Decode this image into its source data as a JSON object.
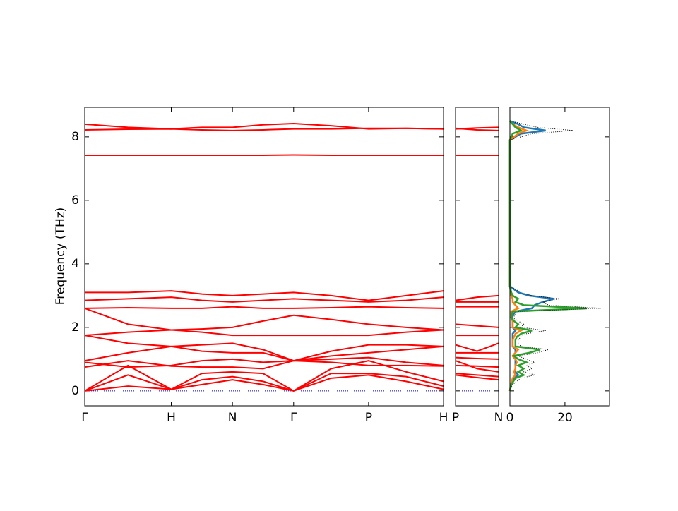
{
  "chart_data": [
    {
      "type": "line",
      "ylabel": "Frequency (THz)",
      "x": [
        0,
        0.5,
        1,
        1.354,
        1.707,
        2.06,
        2.414,
        2.847,
        3.28,
        3.713,
        4.146
      ],
      "xlim": [
        0,
        4.146
      ],
      "xticks": [
        {
          "value": 0,
          "label": "Γ"
        },
        {
          "value": 1,
          "label": "H"
        },
        {
          "value": 1.707,
          "label": "N"
        },
        {
          "value": 2.414,
          "label": "Γ"
        },
        {
          "value": 3.28,
          "label": "P"
        },
        {
          "value": 4.146,
          "label": "H"
        }
      ],
      "ylim": [
        -0.47,
        8.93
      ],
      "yticks": [
        0,
        2,
        4,
        6,
        8
      ],
      "zero_line_color": "#0000cc",
      "series": [
        {
          "color": "#ff0000",
          "values": [
            0,
            0.15,
            0.05,
            0.2,
            0.35,
            0.2,
            0,
            0.4,
            0.5,
            0.3,
            0.05
          ]
        },
        {
          "color": "#ff0000",
          "values": [
            0,
            0.5,
            0.05,
            0.35,
            0.45,
            0.3,
            0,
            0.55,
            0.55,
            0.45,
            0.15
          ]
        },
        {
          "color": "#ff0000",
          "values": [
            0,
            0.8,
            0.05,
            0.55,
            0.6,
            0.55,
            0,
            0.7,
            0.95,
            0.6,
            0.3
          ]
        },
        {
          "color": "#ff0000",
          "values": [
            0.75,
            0.95,
            0.78,
            0.75,
            0.75,
            0.7,
            0.95,
            0.9,
            0.8,
            0.8,
            0.78
          ]
        },
        {
          "color": "#ff0000",
          "values": [
            0.9,
            0.75,
            0.8,
            0.95,
            1.0,
            0.9,
            0.95,
            1.0,
            1.05,
            0.9,
            0.8
          ]
        },
        {
          "color": "#ff0000",
          "values": [
            0.95,
            1.2,
            1.4,
            1.25,
            1.2,
            1.2,
            0.95,
            1.1,
            1.2,
            1.3,
            1.4
          ]
        },
        {
          "color": "#ff0000",
          "values": [
            1.75,
            1.5,
            1.4,
            1.45,
            1.5,
            1.3,
            0.95,
            1.25,
            1.45,
            1.45,
            1.4
          ]
        },
        {
          "color": "#ff0000",
          "values": [
            1.75,
            1.85,
            1.92,
            1.85,
            1.75,
            1.75,
            1.75,
            1.75,
            1.75,
            1.85,
            1.92
          ]
        },
        {
          "color": "#ff0000",
          "values": [
            2.6,
            2.1,
            1.92,
            1.95,
            2.0,
            2.2,
            2.38,
            2.25,
            2.1,
            2.0,
            1.92
          ]
        },
        {
          "color": "#ff0000",
          "values": [
            2.6,
            2.62,
            2.6,
            2.6,
            2.65,
            2.6,
            2.6,
            2.62,
            2.65,
            2.62,
            2.6
          ]
        },
        {
          "color": "#ff0000",
          "values": [
            2.85,
            2.9,
            2.95,
            2.85,
            2.8,
            2.85,
            2.9,
            2.85,
            2.8,
            2.85,
            2.95
          ]
        },
        {
          "color": "#ff0000",
          "values": [
            3.1,
            3.1,
            3.15,
            3.05,
            3.0,
            3.05,
            3.1,
            3.0,
            2.85,
            3.0,
            3.15
          ]
        },
        {
          "color": "#ff0000",
          "values": [
            7.42,
            7.42,
            7.42,
            7.42,
            7.42,
            7.42,
            7.43,
            7.42,
            7.42,
            7.42,
            7.42
          ]
        },
        {
          "color": "#ff0000",
          "values": [
            8.22,
            8.24,
            8.25,
            8.22,
            8.2,
            8.22,
            8.25,
            8.25,
            8.27,
            8.27,
            8.25
          ]
        },
        {
          "color": "#ff0000",
          "values": [
            8.4,
            8.3,
            8.25,
            8.3,
            8.3,
            8.38,
            8.42,
            8.35,
            8.25,
            8.27,
            8.25
          ]
        }
      ]
    },
    {
      "type": "line",
      "x": [
        0,
        0.25,
        0.5
      ],
      "xlim": [
        0,
        0.5
      ],
      "xticks": [
        {
          "value": 0,
          "label": "P"
        },
        {
          "value": 0.5,
          "label": "N"
        }
      ],
      "zero_line_color": "#0000cc",
      "series": [
        {
          "color": "#ff0000",
          "values": [
            0.5,
            0.42,
            0.35
          ]
        },
        {
          "color": "#ff0000",
          "values": [
            0.55,
            0.5,
            0.45
          ]
        },
        {
          "color": "#ff0000",
          "values": [
            0.95,
            0.7,
            0.6
          ]
        },
        {
          "color": "#ff0000",
          "values": [
            0.8,
            0.78,
            0.75
          ]
        },
        {
          "color": "#ff0000",
          "values": [
            1.05,
            1.02,
            1.0
          ]
        },
        {
          "color": "#ff0000",
          "values": [
            1.2,
            1.2,
            1.2
          ]
        },
        {
          "color": "#ff0000",
          "values": [
            1.45,
            1.25,
            1.5
          ]
        },
        {
          "color": "#ff0000",
          "values": [
            1.75,
            1.75,
            1.75
          ]
        },
        {
          "color": "#ff0000",
          "values": [
            2.1,
            2.05,
            2.0
          ]
        },
        {
          "color": "#ff0000",
          "values": [
            2.65,
            2.65,
            2.65
          ]
        },
        {
          "color": "#ff0000",
          "values": [
            2.8,
            2.8,
            2.8
          ]
        },
        {
          "color": "#ff0000",
          "values": [
            2.85,
            2.95,
            3.0
          ]
        },
        {
          "color": "#ff0000",
          "values": [
            7.42,
            7.42,
            7.42
          ]
        },
        {
          "color": "#ff0000",
          "values": [
            8.27,
            8.22,
            8.2
          ]
        },
        {
          "color": "#ff0000",
          "values": [
            8.25,
            8.28,
            8.3
          ]
        }
      ]
    },
    {
      "type": "dos",
      "frequencies": [
        0,
        0.2,
        0.4,
        0.5,
        0.6,
        0.7,
        0.8,
        0.9,
        1.0,
        1.1,
        1.2,
        1.3,
        1.4,
        1.5,
        1.6,
        1.7,
        1.8,
        1.9,
        2.0,
        2.1,
        2.2,
        2.3,
        2.5,
        2.6,
        2.7,
        2.8,
        2.9,
        3.0,
        3.1,
        3.3,
        7.9,
        8.1,
        8.2,
        8.3,
        8.4,
        8.5
      ],
      "xlim": [
        0,
        36.2
      ],
      "xticks": [
        0,
        20
      ],
      "series": [
        {
          "color": "#1f77b4",
          "linestyle": "solid",
          "values": [
            0,
            0.5,
            1.5,
            3,
            2,
            2,
            2,
            2,
            2,
            1,
            2,
            2,
            1,
            1,
            1,
            1,
            1,
            2,
            1,
            1,
            1,
            0.5,
            2,
            8,
            9,
            12,
            16,
            7,
            3,
            0,
            0,
            4,
            13,
            5,
            3,
            0
          ]
        },
        {
          "color": "#ff7f0e",
          "linestyle": "solid",
          "values": [
            0,
            0.3,
            1,
            2,
            1.5,
            2,
            2,
            2.5,
            2,
            1,
            2,
            3,
            1,
            1,
            1,
            1.5,
            2,
            4,
            1,
            1,
            1,
            0.5,
            0.5,
            3,
            2,
            1,
            1,
            0.5,
            0.3,
            0,
            0,
            3,
            6,
            3,
            1,
            0
          ]
        },
        {
          "color": "#2ca02c",
          "linestyle": "solid",
          "values": [
            0,
            0.5,
            2,
            5,
            3,
            5,
            3,
            6,
            3,
            1.5,
            7,
            11,
            2,
            2,
            2,
            2.5,
            4,
            8,
            2,
            3,
            1.5,
            0.5,
            1,
            28,
            5,
            2,
            3,
            1,
            0.5,
            0,
            0,
            1,
            4,
            2,
            1,
            0
          ]
        },
        {
          "color": "#000000",
          "linestyle": "dotted",
          "values": [
            0,
            1,
            4,
            9,
            5,
            8,
            6,
            9,
            6,
            3,
            10,
            14,
            4,
            3,
            3,
            4,
            6,
            13,
            4,
            5,
            3,
            1,
            3,
            33,
            14,
            12,
            18,
            8,
            4,
            0,
            0,
            8,
            23,
            10,
            5,
            0
          ]
        }
      ]
    }
  ]
}
